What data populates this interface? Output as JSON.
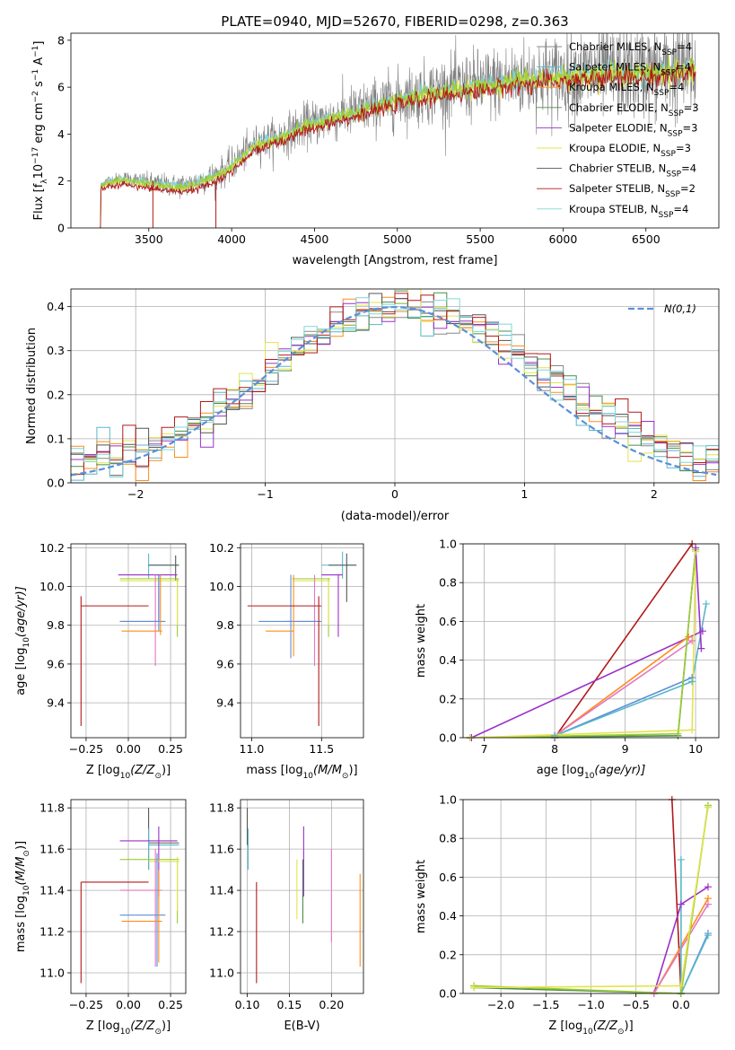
{
  "colors": {
    "Chabrier MILES": "#888888",
    "Salpeter MILES": "#59b7c9",
    "Kroupa MILES": "#ff8c1a",
    "Chabrier ELODIE": "#4c8c4c",
    "Salpeter ELODIE": "#9b30c8",
    "Kroupa ELODIE": "#e3e34d",
    "Chabrier STELIB": "#555555",
    "Salpeter STELIB": "#b21a1a",
    "Kroupa STELIB": "#7fd7d7",
    "pink": "#e377c2",
    "blue": "#5b8fd9",
    "olive": "#9acd32",
    "dashed": "#5b8fd9"
  },
  "chart_data": [
    {
      "id": "spectrum",
      "type": "line",
      "title": "PLATE=0940, MJD=52670, FIBERID=0298, z=0.363",
      "xlabel": "wavelength [Angstrom, rest frame]",
      "ylabel": "Flux [f",
      "ylabel_sub": "λ",
      "ylabel_rest": "10",
      "ylabel_exp": "−17",
      "ylabel_units": " erg cm",
      "xlim": [
        3030,
        6940
      ],
      "ylim": [
        0,
        8.3
      ],
      "xticks": [
        3500,
        4000,
        4500,
        5000,
        5500,
        6000,
        6500
      ],
      "yticks": [
        0,
        2,
        4,
        6,
        8
      ],
      "legend_position": "top-right",
      "legend": [
        {
          "name": "Chabrier MILES, N",
          "sub": "SSP",
          "eq": "=4",
          "color": "#888888"
        },
        {
          "name": "Salpeter MILES, N",
          "sub": "SSP",
          "eq": "=4",
          "color": "#59b7c9"
        },
        {
          "name": "Kroupa MILES, N",
          "sub": "SSP",
          "eq": "=4",
          "color": "#ff8c1a"
        },
        {
          "name": "Chabrier ELODIE, N",
          "sub": "SSP",
          "eq": "=3",
          "color": "#4c8c4c"
        },
        {
          "name": "Salpeter ELODIE, N",
          "sub": "SSP",
          "eq": "=3",
          "color": "#9b30c8"
        },
        {
          "name": "Kroupa ELODIE, N",
          "sub": "SSP",
          "eq": "=3",
          "color": "#e3e34d"
        },
        {
          "name": "Chabrier STELIB, N",
          "sub": "SSP",
          "eq": "=4",
          "color": "#555555"
        },
        {
          "name": "Salpeter STELIB, N",
          "sub": "SSP",
          "eq": "=2",
          "color": "#b21a1a"
        },
        {
          "name": "Kroupa STELIB, N",
          "sub": "SSP",
          "eq": "=4",
          "color": "#7fd7d7"
        }
      ],
      "continuum": [
        [
          3200,
          1.8
        ],
        [
          3250,
          2.0
        ],
        [
          3350,
          2.1
        ],
        [
          3450,
          2.0
        ],
        [
          3550,
          1.9
        ],
        [
          3650,
          1.8
        ],
        [
          3750,
          1.85
        ],
        [
          3850,
          2.1
        ],
        [
          3950,
          2.4
        ],
        [
          4050,
          3.0
        ],
        [
          4150,
          3.6
        ],
        [
          4300,
          3.9
        ],
        [
          4450,
          4.4
        ],
        [
          4600,
          4.7
        ],
        [
          4800,
          5.1
        ],
        [
          5000,
          5.5
        ],
        [
          5200,
          5.8
        ],
        [
          5400,
          6.0
        ],
        [
          5600,
          6.2
        ],
        [
          5800,
          6.4
        ],
        [
          6000,
          6.5
        ],
        [
          6200,
          6.6
        ],
        [
          6400,
          6.65
        ],
        [
          6600,
          6.7
        ],
        [
          6750,
          6.75
        ],
        [
          6800,
          6.8
        ]
      ]
    },
    {
      "id": "residuals",
      "type": "bar",
      "xlabel": "(data-model)/error",
      "ylabel": "Normed distribution",
      "xlim": [
        -2.5,
        2.5
      ],
      "ylim": [
        0,
        0.44
      ],
      "xticks": [
        -2,
        -1,
        0,
        1,
        2
      ],
      "yticks": [
        0.0,
        0.1,
        0.2,
        0.3,
        0.4
      ],
      "legend_position": "top-right",
      "legend": [
        {
          "name": "N(0,1)",
          "color": "#5b8fd9",
          "style": "dashed"
        }
      ],
      "bin_width": 0.1
    },
    {
      "id": "age_vs_Z",
      "type": "scatter",
      "xlabel": "Z [log",
      "xlabel_sub": "10",
      "xlabel_rest": "(Z/Z",
      "ylabel": "age  [log",
      "ylabel_sub": "10",
      "ylabel_rest": "(age/yr)]",
      "xlim": [
        -0.34,
        0.34
      ],
      "ylim": [
        9.22,
        10.22
      ],
      "xticks": [
        -0.25,
        0.0,
        0.25
      ],
      "yticks": [
        9.4,
        9.6,
        9.8,
        10.0,
        10.2
      ],
      "points": [
        {
          "x": 0.12,
          "y": 10.11,
          "xe": [
            0.12,
            0.3
          ],
          "ye": [
            10.04,
            10.17
          ],
          "color": "#59b7c9"
        },
        {
          "x": 0.28,
          "y": 10.11,
          "xe": [
            0.12,
            0.3
          ],
          "ye": [
            10.03,
            10.16
          ],
          "color": "#555555"
        },
        {
          "x": 0.18,
          "y": 10.06,
          "xe": [
            -0.06,
            0.29
          ],
          "ye": [
            9.82,
            10.06
          ],
          "color": "#9b30c8"
        },
        {
          "x": 0.29,
          "y": 10.04,
          "xe": [
            -0.05,
            0.3
          ],
          "ye": [
            9.74,
            10.04
          ],
          "color": "#9acd32"
        },
        {
          "x": 0.29,
          "y": 10.03,
          "xe": [
            -0.05,
            0.3
          ],
          "ye": [
            9.8,
            10.03
          ],
          "color": "#e3e34d"
        },
        {
          "x": 0.16,
          "y": 9.82,
          "xe": [
            -0.05,
            0.2
          ],
          "ye": [
            9.59,
            10.06
          ],
          "color": "#e377c2"
        },
        {
          "x": 0.18,
          "y": 9.82,
          "xe": [
            -0.05,
            0.22
          ],
          "ye": [
            9.77,
            10.06
          ],
          "color": "#5b8fd9"
        },
        {
          "x": 0.19,
          "y": 9.77,
          "xe": [
            -0.04,
            0.2
          ],
          "ye": [
            9.75,
            10.06
          ],
          "color": "#ff8c1a"
        },
        {
          "x": -0.28,
          "y": 9.9,
          "xe": [
            -0.28,
            0.12
          ],
          "ye": [
            9.28,
            9.95
          ],
          "color": "#b21a1a"
        }
      ]
    },
    {
      "id": "age_vs_mass",
      "type": "scatter",
      "xlabel": "mass [log",
      "xlabel_sub": "10",
      "xlabel_rest": "(M/M",
      "xlim": [
        10.92,
        11.8
      ],
      "ylim": [
        9.22,
        10.22
      ],
      "xticks": [
        11.0,
        11.5
      ],
      "yticks": [
        9.4,
        9.6,
        9.8,
        10.0,
        10.2
      ],
      "points": [
        {
          "x": 11.65,
          "y": 10.11,
          "xe": [
            11.5,
            11.75
          ],
          "ye": [
            10.04,
            10.18
          ],
          "color": "#59b7c9"
        },
        {
          "x": 11.68,
          "y": 10.11,
          "xe": [
            11.55,
            11.75
          ],
          "ye": [
            9.92,
            10.17
          ],
          "color": "#555555"
        },
        {
          "x": 11.62,
          "y": 10.06,
          "xe": [
            11.5,
            11.65
          ],
          "ye": [
            9.74,
            10.06
          ],
          "color": "#9b30c8"
        },
        {
          "x": 11.55,
          "y": 10.04,
          "xe": [
            11.29,
            11.56
          ],
          "ye": [
            9.74,
            10.04
          ],
          "color": "#9acd32"
        },
        {
          "x": 11.55,
          "y": 10.03,
          "xe": [
            11.3,
            11.56
          ],
          "ye": [
            9.8,
            10.03
          ],
          "color": "#e3e34d"
        },
        {
          "x": 11.45,
          "y": 9.82,
          "xe": [
            11.25,
            11.47
          ],
          "ye": [
            9.59,
            10.06
          ],
          "color": "#e377c2"
        },
        {
          "x": 11.28,
          "y": 9.82,
          "xe": [
            11.05,
            11.5
          ],
          "ye": [
            9.63,
            10.06
          ],
          "color": "#5b8fd9"
        },
        {
          "x": 11.3,
          "y": 9.77,
          "xe": [
            11.1,
            11.3
          ],
          "ye": [
            9.64,
            10.06
          ],
          "color": "#ff8c1a"
        },
        {
          "x": 11.48,
          "y": 9.9,
          "xe": [
            10.97,
            11.5
          ],
          "ye": [
            9.28,
            9.95
          ],
          "color": "#b21a1a"
        }
      ]
    },
    {
      "id": "mass_weight_vs_age",
      "type": "line",
      "xlabel": "age  [log",
      "xlabel_sub": "10",
      "xlabel_rest": "(age/yr)]",
      "ylabel": "mass weight",
      "xlim": [
        6.7,
        10.33
      ],
      "ylim": [
        0,
        1.0
      ],
      "xticks": [
        7,
        8,
        9,
        10
      ],
      "yticks": [
        0.0,
        0.2,
        0.4,
        0.6,
        0.8,
        1.0
      ],
      "series": [
        {
          "color": "#b21a1a",
          "points": [
            [
              8.0,
              0.0
            ],
            [
              9.95,
              1.0
            ]
          ]
        },
        {
          "color": "#9b30c8",
          "points": [
            [
              6.82,
              0.0
            ],
            [
              10.1,
              0.55
            ]
          ]
        },
        {
          "color": "#ff8c1a",
          "points": [
            [
              6.8,
              0.0
            ],
            [
              8.0,
              0.01
            ],
            [
              9.9,
              0.52
            ]
          ]
        },
        {
          "color": "#e377c2",
          "points": [
            [
              6.8,
              0.0
            ],
            [
              8.0,
              0.01
            ],
            [
              9.95,
              0.5
            ]
          ]
        },
        {
          "color": "#5b8fd9",
          "points": [
            [
              6.8,
              0.0
            ],
            [
              8.0,
              0.01
            ],
            [
              9.95,
              0.31
            ]
          ]
        },
        {
          "color": "#59b7c9",
          "points": [
            [
              6.8,
              0.0
            ],
            [
              8.0,
              0.01
            ],
            [
              9.95,
              0.29
            ],
            [
              10.15,
              0.69
            ]
          ]
        },
        {
          "color": "#4c8c4c",
          "points": [
            [
              6.8,
              0.0
            ],
            [
              9.75,
              0.01
            ],
            [
              10.0,
              0.97
            ]
          ]
        },
        {
          "color": "#9acd32",
          "points": [
            [
              6.8,
              0.0
            ],
            [
              9.75,
              0.02
            ],
            [
              10.0,
              0.97
            ]
          ]
        },
        {
          "color": "#e3e34d",
          "points": [
            [
              6.8,
              0.0
            ],
            [
              9.95,
              0.04
            ],
            [
              10.0,
              0.96
            ]
          ]
        },
        {
          "color": "#9b30c8",
          "points": [
            [
              10.0,
              0.98
            ],
            [
              10.08,
              0.46
            ]
          ]
        }
      ]
    },
    {
      "id": "mass_vs_Z",
      "type": "scatter",
      "xlabel": "Z [log",
      "xlabel_sub": "10",
      "xlabel_rest": "(Z/Z",
      "ylabel": "mass [log",
      "ylabel_sub": "10",
      "ylabel_rest": "(M/M",
      "xlim": [
        -0.34,
        0.34
      ],
      "ylim": [
        10.9,
        11.84
      ],
      "xticks": [
        -0.25,
        0.0,
        0.25
      ],
      "yticks": [
        11.0,
        11.2,
        11.4,
        11.6,
        11.8
      ],
      "points": [
        {
          "x": 0.12,
          "y": 11.63,
          "xe": [
            0.12,
            0.3
          ],
          "ye": [
            11.5,
            11.8
          ],
          "color": "#555555"
        },
        {
          "x": 0.12,
          "y": 11.62,
          "xe": [
            0.12,
            0.3
          ],
          "ye": [
            11.5,
            11.7
          ],
          "color": "#59b7c9"
        },
        {
          "x": 0.18,
          "y": 11.64,
          "xe": [
            -0.05,
            0.29
          ],
          "ye": [
            11.37,
            11.71
          ],
          "color": "#9b30c8"
        },
        {
          "x": 0.29,
          "y": 11.55,
          "xe": [
            -0.05,
            0.3
          ],
          "ye": [
            11.24,
            11.56
          ],
          "color": "#9acd32"
        },
        {
          "x": 0.29,
          "y": 11.54,
          "xe": [
            0.12,
            0.3
          ],
          "ye": [
            11.3,
            11.56
          ],
          "color": "#e3e34d"
        },
        {
          "x": 0.16,
          "y": 11.4,
          "xe": [
            -0.05,
            0.2
          ],
          "ye": [
            11.03,
            11.6
          ],
          "color": "#e377c2"
        },
        {
          "x": 0.17,
          "y": 11.28,
          "xe": [
            -0.05,
            0.22
          ],
          "ye": [
            11.03,
            11.58
          ],
          "color": "#5b8fd9"
        },
        {
          "x": 0.18,
          "y": 11.25,
          "xe": [
            -0.04,
            0.2
          ],
          "ye": [
            11.05,
            11.5
          ],
          "color": "#ff8c1a"
        },
        {
          "x": -0.28,
          "y": 11.44,
          "xe": [
            -0.28,
            0.12
          ],
          "ye": [
            10.95,
            11.44
          ],
          "color": "#b21a1a"
        }
      ]
    },
    {
      "id": "mass_vs_EBV",
      "type": "scatter",
      "xlabel": "E(B-V)",
      "xlim": [
        0.092,
        0.238
      ],
      "ylim": [
        10.9,
        11.84
      ],
      "xticks": [
        0.1,
        0.15,
        0.2
      ],
      "yticks": [
        11.0,
        11.2,
        11.4,
        11.6,
        11.8
      ],
      "points": [
        {
          "x": 0.1,
          "ye": [
            11.62,
            11.8
          ],
          "color": "#555555"
        },
        {
          "x": 0.101,
          "ye": [
            11.5,
            11.7
          ],
          "color": "#59b7c9"
        },
        {
          "x": 0.111,
          "ye": [
            10.95,
            11.44
          ],
          "color": "#b21a1a"
        },
        {
          "x": 0.159,
          "ye": [
            11.26,
            11.55
          ],
          "color": "#e3e34d"
        },
        {
          "x": 0.166,
          "ye": [
            11.24,
            11.55
          ],
          "color": "#4c8c4c"
        },
        {
          "x": 0.167,
          "ye": [
            11.37,
            11.71
          ],
          "color": "#9b30c8"
        },
        {
          "x": 0.2,
          "ye": [
            11.15,
            11.6
          ],
          "color": "#e377c2"
        },
        {
          "x": 0.234,
          "ye": [
            11.03,
            11.48
          ],
          "color": "#ff8c1a"
        }
      ]
    },
    {
      "id": "mass_weight_vs_Z",
      "type": "line",
      "xlabel": "Z [log",
      "xlabel_sub": "10",
      "xlabel_rest": "(Z/Z",
      "ylabel": "mass weight",
      "xlim": [
        -2.42,
        0.42
      ],
      "ylim": [
        0,
        1.0
      ],
      "xticks": [
        -2.0,
        -1.5,
        -1.0,
        -0.5,
        0.0
      ],
      "yticks": [
        0.0,
        0.2,
        0.4,
        0.6,
        0.8,
        1.0
      ],
      "series": [
        {
          "color": "#b21a1a",
          "points": [
            [
              -0.1,
              1.0
            ],
            [
              0.0,
              0.0
            ]
          ]
        },
        {
          "color": "#9b30c8",
          "points": [
            [
              -0.3,
              0.0
            ],
            [
              0.0,
              0.46
            ],
            [
              0.3,
              0.55
            ]
          ]
        },
        {
          "color": "#ff8c1a",
          "points": [
            [
              -0.3,
              0.0
            ],
            [
              0.3,
              0.49
            ]
          ]
        },
        {
          "color": "#e377c2",
          "points": [
            [
              -0.3,
              0.0
            ],
            [
              0.3,
              0.46
            ]
          ]
        },
        {
          "color": "#5b8fd9",
          "points": [
            [
              0.0,
              0.0
            ],
            [
              0.3,
              0.31
            ]
          ]
        },
        {
          "color": "#59b7c9",
          "points": [
            [
              0.0,
              0.69
            ],
            [
              0.0,
              0.0
            ],
            [
              0.3,
              0.3
            ]
          ]
        },
        {
          "color": "#4c8c4c",
          "points": [
            [
              -2.3,
              0.03
            ],
            [
              0.0,
              0.0
            ],
            [
              0.3,
              0.97
            ]
          ]
        },
        {
          "color": "#9acd32",
          "points": [
            [
              -2.3,
              0.04
            ],
            [
              0.0,
              0.0
            ],
            [
              0.3,
              0.97
            ]
          ]
        },
        {
          "color": "#e3e34d",
          "points": [
            [
              -2.3,
              0.03
            ],
            [
              0.0,
              0.04
            ],
            [
              0.3,
              0.96
            ]
          ]
        }
      ]
    }
  ]
}
